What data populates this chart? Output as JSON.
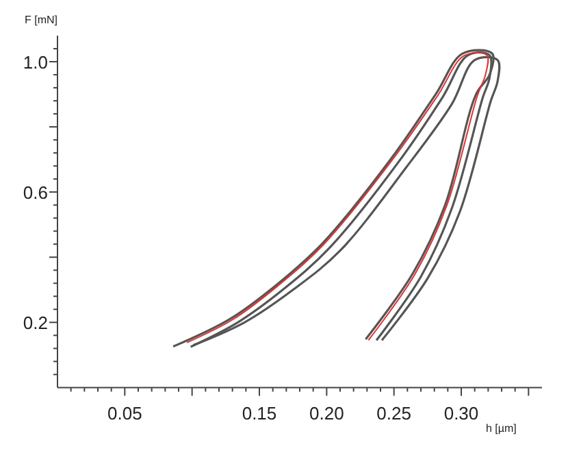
{
  "chart_data": {
    "type": "line",
    "xlabel": "h [µm]",
    "ylabel": "F [mN]",
    "xlim": [
      0,
      0.36
    ],
    "ylim": [
      0,
      1.08
    ],
    "xticks": [
      {
        "value": 0.01,
        "label": null
      },
      {
        "value": 0.02,
        "label": null
      },
      {
        "value": 0.03,
        "label": null
      },
      {
        "value": 0.04,
        "label": null
      },
      {
        "value": 0.05,
        "label": "0.05"
      },
      {
        "value": 0.06,
        "label": null
      },
      {
        "value": 0.07,
        "label": null
      },
      {
        "value": 0.08,
        "label": null
      },
      {
        "value": 0.09,
        "label": null
      },
      {
        "value": 0.1,
        "label": null
      },
      {
        "value": 0.11,
        "label": null
      },
      {
        "value": 0.12,
        "label": null
      },
      {
        "value": 0.13,
        "label": null
      },
      {
        "value": 0.14,
        "label": null
      },
      {
        "value": 0.15,
        "label": "0.15"
      },
      {
        "value": 0.16,
        "label": null
      },
      {
        "value": 0.17,
        "label": null
      },
      {
        "value": 0.18,
        "label": null
      },
      {
        "value": 0.19,
        "label": null
      },
      {
        "value": 0.2,
        "label": "0.20"
      },
      {
        "value": 0.21,
        "label": null
      },
      {
        "value": 0.22,
        "label": null
      },
      {
        "value": 0.23,
        "label": null
      },
      {
        "value": 0.24,
        "label": null
      },
      {
        "value": 0.25,
        "label": "0.25"
      },
      {
        "value": 0.26,
        "label": null
      },
      {
        "value": 0.27,
        "label": null
      },
      {
        "value": 0.28,
        "label": null
      },
      {
        "value": 0.29,
        "label": null
      },
      {
        "value": 0.3,
        "label": "0.30"
      },
      {
        "value": 0.31,
        "label": null
      },
      {
        "value": 0.32,
        "label": null
      },
      {
        "value": 0.33,
        "label": null
      },
      {
        "value": 0.34,
        "label": null
      },
      {
        "value": 0.35,
        "label": null
      }
    ],
    "yticks": [
      {
        "value": 0.04,
        "label": null
      },
      {
        "value": 0.08,
        "label": null
      },
      {
        "value": 0.12,
        "label": null
      },
      {
        "value": 0.16,
        "label": null
      },
      {
        "value": 0.2,
        "label": "0.2"
      },
      {
        "value": 0.24,
        "label": null
      },
      {
        "value": 0.28,
        "label": null
      },
      {
        "value": 0.32,
        "label": null
      },
      {
        "value": 0.36,
        "label": null
      },
      {
        "value": 0.4,
        "label": null
      },
      {
        "value": 0.44,
        "label": null
      },
      {
        "value": 0.48,
        "label": null
      },
      {
        "value": 0.52,
        "label": null
      },
      {
        "value": 0.56,
        "label": null
      },
      {
        "value": 0.6,
        "label": "0.6"
      },
      {
        "value": 0.64,
        "label": null
      },
      {
        "value": 0.68,
        "label": null
      },
      {
        "value": 0.72,
        "label": null
      },
      {
        "value": 0.76,
        "label": null
      },
      {
        "value": 0.8,
        "label": null
      },
      {
        "value": 0.84,
        "label": null
      },
      {
        "value": 0.88,
        "label": null
      },
      {
        "value": 0.92,
        "label": null
      },
      {
        "value": 0.96,
        "label": null
      },
      {
        "value": 1.0,
        "label": "1.0"
      },
      {
        "value": 1.04,
        "label": null
      }
    ],
    "grid": false,
    "marker": "none",
    "line_style": "solid",
    "series": [
      {
        "color": "#555555",
        "x": [
          0.086,
          0.128,
          0.163,
          0.197,
          0.248,
          0.281,
          0.301,
          0.323,
          0.321,
          0.311,
          0.288,
          0.264,
          0.229
        ],
        "values": [
          0.126,
          0.21,
          0.316,
          0.443,
          0.703,
          0.9,
          1.025,
          1.025,
          0.96,
          0.9,
          0.56,
          0.35,
          0.148
        ]
      },
      {
        "color": "#555555",
        "x": [
          0.099,
          0.134,
          0.168,
          0.202,
          0.253,
          0.286,
          0.305,
          0.321,
          0.321,
          0.316,
          0.293,
          0.27,
          0.237
        ],
        "values": [
          0.125,
          0.2,
          0.302,
          0.428,
          0.69,
          0.89,
          1.02,
          1.02,
          0.95,
          0.89,
          0.55,
          0.34,
          0.145
        ]
      },
      {
        "color": "#555555",
        "x": [
          0.101,
          0.139,
          0.175,
          0.21,
          0.259,
          0.293,
          0.31,
          0.327,
          0.327,
          0.322,
          0.299,
          0.275,
          0.241
        ],
        "values": [
          0.13,
          0.2,
          0.3,
          0.42,
          0.675,
          0.87,
          1.005,
          1.005,
          0.94,
          0.88,
          0.54,
          0.335,
          0.145
        ]
      },
      {
        "color": "#e03030",
        "x": [
          0.0962,
          0.13,
          0.164,
          0.198,
          0.249,
          0.2825,
          0.302,
          0.319,
          0.318,
          0.312,
          0.2893,
          0.2656,
          0.231
        ],
        "values": [
          0.138,
          0.208,
          0.313,
          0.44,
          0.7,
          0.896,
          1.018,
          1.02,
          0.96,
          0.896,
          0.559,
          0.348,
          0.145
        ]
      }
    ]
  }
}
